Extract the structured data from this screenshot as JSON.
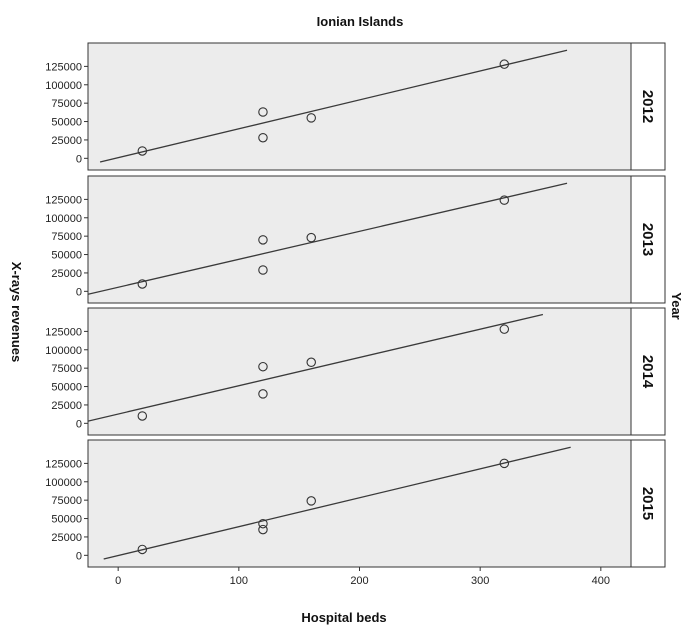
{
  "chart_data": {
    "type": "scatter",
    "title": "Ionian Islands",
    "xlabel": "Hospital beds",
    "ylabel": "X-rays revenues",
    "facet_label": "Year",
    "xlim": [
      -25,
      425
    ],
    "ylim": [
      -5000,
      150000
    ],
    "x_ticks": [
      0,
      100,
      200,
      300,
      400
    ],
    "y_ticks": [
      0,
      25000,
      50000,
      75000,
      100000,
      125000
    ],
    "grid": false,
    "fit_line": "linear",
    "panels": [
      {
        "label": "2012",
        "points": [
          [
            20,
            10000
          ],
          [
            120,
            28000
          ],
          [
            120,
            63000
          ],
          [
            160,
            55000
          ],
          [
            320,
            128000
          ]
        ],
        "fit": {
          "x": [
            -15,
            372
          ],
          "y": [
            -5000,
            147000
          ]
        }
      },
      {
        "label": "2013",
        "points": [
          [
            20,
            10000
          ],
          [
            120,
            29000
          ],
          [
            120,
            70000
          ],
          [
            160,
            73000
          ],
          [
            320,
            124000
          ]
        ],
        "fit": {
          "x": [
            -25,
            372
          ],
          "y": [
            -4000,
            147000
          ]
        }
      },
      {
        "label": "2014",
        "points": [
          [
            20,
            10000
          ],
          [
            120,
            40000
          ],
          [
            120,
            77000
          ],
          [
            160,
            83000
          ],
          [
            320,
            128000
          ]
        ],
        "fit": {
          "x": [
            -25,
            352
          ],
          "y": [
            3000,
            148000
          ]
        }
      },
      {
        "label": "2015",
        "points": [
          [
            20,
            8000
          ],
          [
            120,
            35000
          ],
          [
            120,
            43000
          ],
          [
            160,
            74000
          ],
          [
            320,
            125000
          ]
        ],
        "fit": {
          "x": [
            -12,
            375
          ],
          "y": [
            -5000,
            147000
          ]
        }
      }
    ]
  }
}
